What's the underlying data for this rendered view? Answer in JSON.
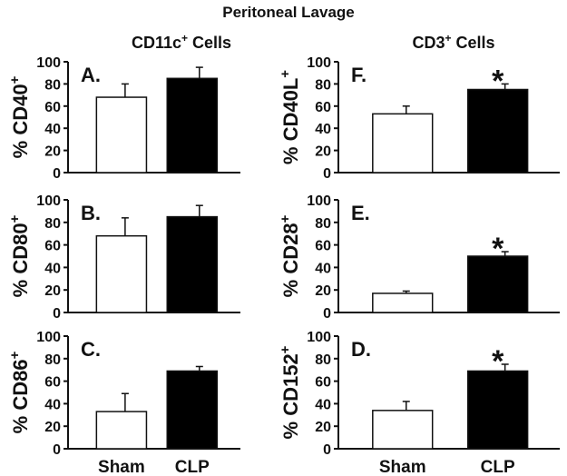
{
  "title": "Peritoneal Lavage",
  "columns": [
    {
      "title_main": "CD11c",
      "title_sup": "+",
      "title_rest": " Cells"
    },
    {
      "title_main": "CD3",
      "title_sup": "+",
      "title_rest": " Cells"
    }
  ],
  "categories": [
    "Sham",
    "CLP"
  ],
  "colors": {
    "sham": "#ffffff",
    "clp": "#000000",
    "axis": "#111111"
  },
  "chart_data": [
    {
      "type": "bar",
      "panel": "A.",
      "column": 0,
      "row": 0,
      "ylabel_main": "% CD40",
      "ylabel_sup": "+",
      "categories": [
        "Sham",
        "CLP"
      ],
      "values": [
        68,
        85
      ],
      "errors": [
        12,
        10
      ],
      "significant": [
        false,
        false
      ],
      "ylim": [
        0,
        100
      ],
      "yticks": [
        0,
        20,
        40,
        60,
        80,
        100
      ]
    },
    {
      "type": "bar",
      "panel": "B.",
      "column": 0,
      "row": 1,
      "ylabel_main": "% CD80",
      "ylabel_sup": "+",
      "categories": [
        "Sham",
        "CLP"
      ],
      "values": [
        68,
        85
      ],
      "errors": [
        16,
        10
      ],
      "significant": [
        false,
        false
      ],
      "ylim": [
        0,
        100
      ],
      "yticks": [
        0,
        20,
        40,
        60,
        80,
        100
      ]
    },
    {
      "type": "bar",
      "panel": "C.",
      "column": 0,
      "row": 2,
      "ylabel_main": "% CD86",
      "ylabel_sup": "+",
      "categories": [
        "Sham",
        "CLP"
      ],
      "values": [
        33,
        69
      ],
      "errors": [
        16,
        4
      ],
      "significant": [
        false,
        false
      ],
      "ylim": [
        0,
        100
      ],
      "yticks": [
        0,
        20,
        40,
        60,
        80,
        100
      ]
    },
    {
      "type": "bar",
      "panel": "F.",
      "column": 1,
      "row": 0,
      "ylabel_main": "% CD40L",
      "ylabel_sup": "+",
      "categories": [
        "Sham",
        "CLP"
      ],
      "values": [
        53,
        75
      ],
      "errors": [
        7,
        5
      ],
      "significant": [
        false,
        true
      ],
      "ylim": [
        0,
        100
      ],
      "yticks": [
        0,
        20,
        40,
        60,
        80,
        100
      ]
    },
    {
      "type": "bar",
      "panel": "E.",
      "column": 1,
      "row": 1,
      "ylabel_main": "% CD28",
      "ylabel_sup": "+",
      "categories": [
        "Sham",
        "CLP"
      ],
      "values": [
        17,
        50
      ],
      "errors": [
        2,
        4
      ],
      "significant": [
        false,
        true
      ],
      "ylim": [
        0,
        100
      ],
      "yticks": [
        0,
        20,
        40,
        60,
        80,
        100
      ]
    },
    {
      "type": "bar",
      "panel": "D.",
      "column": 1,
      "row": 2,
      "ylabel_main": "% CD152",
      "ylabel_sup": "+",
      "categories": [
        "Sham",
        "CLP"
      ],
      "values": [
        34,
        69
      ],
      "errors": [
        8,
        6
      ],
      "significant": [
        false,
        true
      ],
      "ylim": [
        0,
        100
      ],
      "yticks": [
        0,
        20,
        40,
        60,
        80,
        100
      ]
    }
  ],
  "significance_marker": "*"
}
